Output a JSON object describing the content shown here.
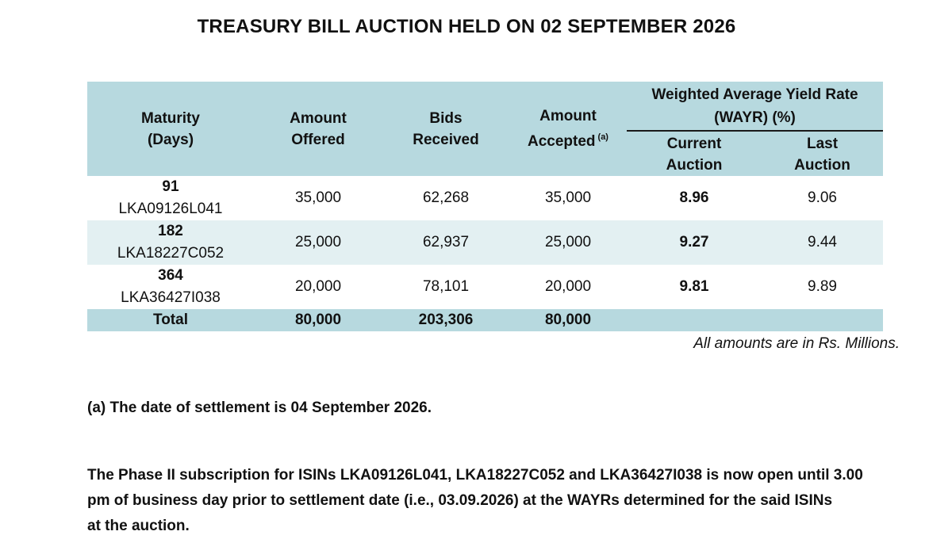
{
  "title": "TREASURY BILL AUCTION HELD ON 02 SEPTEMBER 2026",
  "table": {
    "headers": {
      "maturity": [
        "Maturity",
        "(Days)"
      ],
      "amount_offered": [
        "Amount",
        "Offered"
      ],
      "bids_received": [
        "Bids",
        "Received"
      ],
      "amount_accepted": [
        "Amount",
        "Accepted"
      ],
      "amount_accepted_note": "(a)",
      "wayr_title": [
        "Weighted Average Yield Rate",
        "(WAYR) (%)"
      ],
      "current_auction": [
        "Current",
        "Auction"
      ],
      "last_auction": [
        "Last",
        "Auction"
      ]
    },
    "rows": [
      {
        "days": "91",
        "isin": "LKA09126L041",
        "offered": "35,000",
        "bids": "62,268",
        "accepted": "35,000",
        "current": "8.96",
        "last": "9.06"
      },
      {
        "days": "182",
        "isin": "LKA18227C052",
        "offered": "25,000",
        "bids": "62,937",
        "accepted": "25,000",
        "current": "9.27",
        "last": "9.44"
      },
      {
        "days": "364",
        "isin": "LKA36427I038",
        "offered": "20,000",
        "bids": "78,101",
        "accepted": "20,000",
        "current": "9.81",
        "last": "9.89"
      }
    ],
    "total": {
      "label": "Total",
      "offered": "80,000",
      "bids": "203,306",
      "accepted": "80,000"
    }
  },
  "units_note": "All amounts are in Rs. Millions.",
  "settlement_note": "(a) The date of settlement is 04 September 2026.",
  "phase_note": [
    "The Phase II subscription for ISINs LKA09126L041, LKA18227C052 and LKA36427I038 is now open until 3.00",
    "pm of business day prior to settlement date (i.e., 03.09.2026) at the WAYRs determined for the said ISINs",
    "at the auction."
  ]
}
